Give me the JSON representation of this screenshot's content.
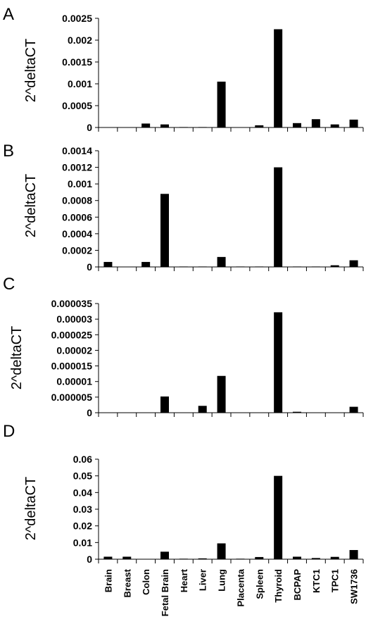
{
  "chart_data": [
    {
      "type": "bar",
      "panel": "A",
      "ylabel": "2^deltaCT",
      "categories": [
        "Brain",
        "Breast",
        "Colon",
        "Fetal Brain",
        "Heart",
        "Liver",
        "Lung",
        "Placenta",
        "Spleen",
        "Thyroid",
        "BCPAP",
        "KTC1",
        "TPC1",
        "SW1736"
      ],
      "values": [
        0,
        0,
        9e-05,
        7e-05,
        1e-05,
        1e-05,
        0.00105,
        0,
        5e-05,
        0.00225,
        0.0001,
        0.00019,
        7e-05,
        0.00018
      ],
      "ylim": [
        0,
        0.0025
      ],
      "yticks": [
        "0",
        "0.0005",
        "0.001",
        "0.0015",
        "0.002",
        "0.0025"
      ],
      "grid": false
    },
    {
      "type": "bar",
      "panel": "B",
      "ylabel": "2^deltaCT",
      "categories": [
        "Brain",
        "Breast",
        "Colon",
        "Fetal Brain",
        "Heart",
        "Liver",
        "Lung",
        "Placenta",
        "Spleen",
        "Thyroid",
        "BCPAP",
        "KTC1",
        "TPC1",
        "SW1736"
      ],
      "values": [
        6e-05,
        0,
        6e-05,
        0.00088,
        5e-06,
        5e-06,
        0.00012,
        5e-06,
        5e-06,
        0.0012,
        5e-06,
        5e-06,
        2e-05,
        8e-05
      ],
      "ylim": [
        0,
        0.0014
      ],
      "yticks": [
        "0",
        "0.0002",
        "0.0004",
        "0.0006",
        "0.0008",
        "0.001",
        "0.0012",
        "0.0014"
      ],
      "grid": false
    },
    {
      "type": "bar",
      "panel": "C",
      "ylabel": "2^deltaCT",
      "categories": [
        "Brain",
        "Breast",
        "Colon",
        "Fetal Brain",
        "Heart",
        "Liver",
        "Lung",
        "Placenta",
        "Spleen",
        "Thyroid",
        "BCPAP",
        "KTC1",
        "TPC1",
        "SW1736"
      ],
      "values": [
        0,
        0,
        0,
        5.2e-06,
        0,
        2.2e-06,
        1.18e-05,
        0,
        0,
        3.22e-05,
        3e-07,
        0,
        0,
        1.9e-06
      ],
      "ylim": [
        0,
        3.5e-05
      ],
      "yticks": [
        "0",
        "0.000005",
        "0.00001",
        "0.000015",
        "0.00002",
        "0.000025",
        "0.00003",
        "0.000035"
      ],
      "grid": false
    },
    {
      "type": "bar",
      "panel": "D",
      "ylabel": "2^deltaCT",
      "categories": [
        "Brain",
        "Breast",
        "Colon",
        "Fetal Brain",
        "Heart",
        "Liver",
        "Lung",
        "Placenta",
        "Spleen",
        "Thyroid",
        "BCPAP",
        "KTC1",
        "TPC1",
        "SW1736"
      ],
      "values": [
        0.0015,
        0.0015,
        0,
        0.0045,
        0.0003,
        0.0005,
        0.0095,
        0.0003,
        0.0013,
        0.05,
        0.0015,
        0.0007,
        0.0014,
        0.0055
      ],
      "ylim": [
        0,
        0.06
      ],
      "yticks": [
        "0",
        "0.01",
        "0.02",
        "0.03",
        "0.04",
        "0.05",
        "0.06"
      ],
      "grid": false
    }
  ],
  "colors": {
    "bar": "#000000",
    "axis": "#000000"
  }
}
